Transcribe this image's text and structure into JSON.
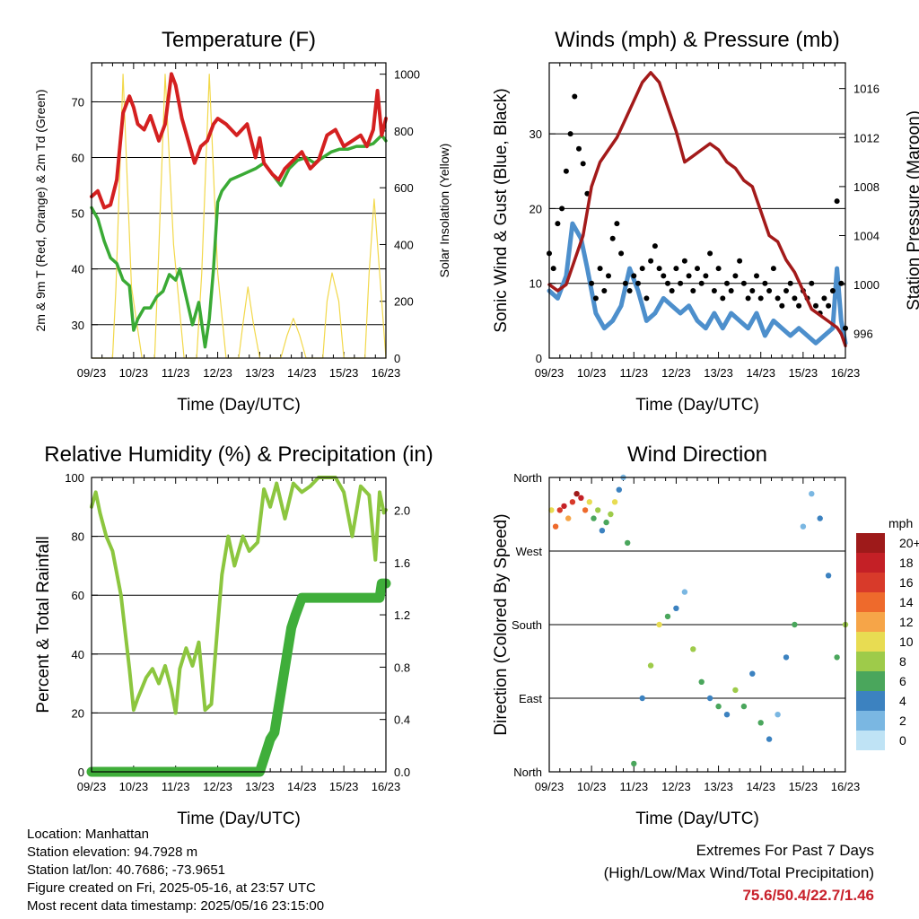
{
  "chart_data": [
    {
      "type": "line",
      "title": "Temperature (F)",
      "xlabel": "Time (Day/UTC)",
      "ylabel": "2m & 9m T (Red, Orange) & 2m Td (Green)",
      "ylabel_right": "Solar Insolation (Yellow)",
      "x_ticks": [
        "09/23",
        "10/23",
        "11/23",
        "12/23",
        "13/23",
        "14/23",
        "15/23",
        "16/23"
      ],
      "xlim": [
        0,
        7
      ],
      "ylim": [
        24,
        77
      ],
      "y_ticks": [
        30,
        40,
        50,
        60,
        70
      ],
      "ylim_right": [
        0,
        1040
      ],
      "y_ticks_right": [
        0,
        200,
        400,
        600,
        800,
        1000
      ],
      "grid": true,
      "series": [
        {
          "name": "2m & 9m T",
          "axis": "left",
          "color": "#d42020",
          "x": [
            0,
            0.15,
            0.3,
            0.45,
            0.6,
            0.75,
            0.9,
            1.0,
            1.1,
            1.25,
            1.4,
            1.6,
            1.75,
            1.9,
            2.0,
            2.15,
            2.3,
            2.45,
            2.6,
            2.75,
            2.9,
            3.0,
            3.2,
            3.45,
            3.7,
            3.9,
            4.0,
            4.1,
            4.3,
            4.45,
            4.6,
            4.8,
            5.0,
            5.2,
            5.4,
            5.6,
            5.8,
            6.0,
            6.2,
            6.4,
            6.55,
            6.7,
            6.8,
            6.9,
            7.0
          ],
          "y": [
            53,
            54,
            51,
            51.5,
            56,
            68,
            71,
            69,
            66,
            65,
            67.5,
            63,
            66,
            75,
            73,
            67,
            63,
            59,
            62,
            63,
            66,
            67,
            66,
            64,
            66,
            60,
            63.5,
            59,
            57,
            56,
            58,
            59.5,
            61,
            58,
            59.5,
            64,
            65,
            62,
            63,
            64,
            62,
            65,
            72,
            64,
            67
          ]
        },
        {
          "name": "2m Td",
          "axis": "left",
          "color": "#3aaa35",
          "x": [
            0,
            0.15,
            0.3,
            0.45,
            0.6,
            0.75,
            0.9,
            1.0,
            1.1,
            1.25,
            1.4,
            1.55,
            1.7,
            1.85,
            2.0,
            2.1,
            2.25,
            2.4,
            2.55,
            2.7,
            2.8,
            2.9,
            3.0,
            3.1,
            3.3,
            3.6,
            3.9,
            4.1,
            4.3,
            4.5,
            4.7,
            4.9,
            5.1,
            5.3,
            5.5,
            5.7,
            5.9,
            6.1,
            6.3,
            6.5,
            6.7,
            6.9,
            7.0
          ],
          "y": [
            51,
            49,
            45,
            42,
            41,
            38,
            37,
            29,
            31,
            33,
            33,
            35,
            36,
            39,
            38,
            40,
            35,
            30,
            34,
            26,
            31,
            40,
            52,
            54,
            56,
            57,
            58,
            59,
            57,
            55,
            58,
            59.5,
            60,
            59,
            60,
            61,
            61.5,
            61.5,
            62,
            62,
            62.5,
            64,
            63
          ]
        },
        {
          "name": "Solar Insolation",
          "axis": "right",
          "color": "#f2d84a",
          "x": [
            0,
            0.5,
            0.58,
            0.75,
            0.95,
            1.2,
            1.5,
            1.58,
            1.75,
            1.95,
            2.2,
            2.5,
            2.62,
            2.8,
            3.0,
            3.2,
            3.5,
            3.6,
            3.72,
            3.85,
            4.0,
            4.5,
            4.65,
            4.8,
            4.95,
            5.1,
            5.5,
            5.6,
            5.72,
            5.88,
            6.0,
            6.5,
            6.6,
            6.72,
            6.85,
            7.0
          ],
          "y": [
            0,
            0,
            250,
            1000,
            250,
            0,
            0,
            300,
            1000,
            400,
            0,
            0,
            300,
            1000,
            300,
            0,
            0,
            120,
            250,
            120,
            0,
            0,
            80,
            140,
            80,
            0,
            0,
            200,
            300,
            200,
            0,
            0,
            300,
            560,
            300,
            0
          ]
        }
      ]
    },
    {
      "type": "line",
      "title": "Winds (mph) & Pressure (mb)",
      "xlabel": "Time (Day/UTC)",
      "ylabel": "Sonic Wind & Gust (Blue, Black)",
      "ylabel_right": "Station Pressure (Maroon)",
      "x_ticks": [
        "09/23",
        "10/23",
        "11/23",
        "12/23",
        "13/23",
        "14/23",
        "15/23",
        "16/23"
      ],
      "xlim": [
        0,
        7
      ],
      "ylim": [
        0,
        39.5
      ],
      "y_ticks": [
        0,
        10,
        20,
        30
      ],
      "ylim_right": [
        994,
        1018.1
      ],
      "y_ticks_right": [
        996,
        1000,
        1004,
        1008,
        1012,
        1016
      ],
      "grid": true,
      "series": [
        {
          "name": "Sonic Wind",
          "axis": "left",
          "color": "#4d8fcc",
          "x": [
            0,
            0.2,
            0.4,
            0.55,
            0.75,
            0.9,
            1.1,
            1.3,
            1.5,
            1.7,
            1.9,
            2.1,
            2.3,
            2.5,
            2.7,
            2.9,
            3.1,
            3.3,
            3.5,
            3.7,
            3.9,
            4.1,
            4.3,
            4.5,
            4.7,
            4.9,
            5.1,
            5.3,
            5.5,
            5.7,
            5.9,
            6.1,
            6.3,
            6.5,
            6.7,
            6.8,
            6.9,
            7.0
          ],
          "y": [
            9,
            8,
            11,
            18,
            16,
            12,
            6,
            4,
            5,
            7,
            12,
            9,
            5,
            6,
            8,
            7,
            6,
            7,
            5,
            4,
            6,
            4,
            6,
            5,
            4,
            6,
            3,
            5,
            4,
            3,
            4,
            3,
            2,
            3,
            4,
            12,
            5,
            2
          ]
        },
        {
          "name": "Gust",
          "axis": "left",
          "color": "#000000",
          "kind": "scatter",
          "x": [
            0,
            0.1,
            0.2,
            0.3,
            0.4,
            0.5,
            0.6,
            0.7,
            0.8,
            0.9,
            1.0,
            1.1,
            1.2,
            1.3,
            1.4,
            1.5,
            1.6,
            1.7,
            1.8,
            1.9,
            2.0,
            2.1,
            2.2,
            2.3,
            2.4,
            2.5,
            2.6,
            2.7,
            2.8,
            2.9,
            3.0,
            3.1,
            3.2,
            3.3,
            3.4,
            3.5,
            3.6,
            3.7,
            3.8,
            3.9,
            4.0,
            4.1,
            4.2,
            4.3,
            4.4,
            4.5,
            4.6,
            4.7,
            4.8,
            4.9,
            5.0,
            5.1,
            5.2,
            5.3,
            5.4,
            5.5,
            5.6,
            5.7,
            5.8,
            5.9,
            6.0,
            6.1,
            6.2,
            6.3,
            6.4,
            6.5,
            6.6,
            6.7,
            6.8,
            6.9,
            7.0
          ],
          "y": [
            14,
            12,
            18,
            20,
            25,
            30,
            35,
            28,
            26,
            22,
            10,
            8,
            12,
            9,
            11,
            16,
            18,
            14,
            10,
            9,
            11,
            10,
            12,
            8,
            13,
            15,
            12,
            11,
            10,
            9,
            12,
            10,
            13,
            11,
            9,
            12,
            10,
            11,
            14,
            9,
            12,
            8,
            10,
            9,
            11,
            13,
            10,
            8,
            9,
            11,
            8,
            10,
            9,
            12,
            8,
            7,
            9,
            10,
            8,
            7,
            9,
            8,
            10,
            7,
            6,
            8,
            7,
            9,
            21,
            10,
            4
          ]
        },
        {
          "name": "Station Pressure",
          "axis": "right",
          "color": "#a31a1a",
          "x": [
            0,
            0.2,
            0.4,
            0.6,
            0.8,
            1.0,
            1.2,
            1.4,
            1.6,
            1.8,
            2.0,
            2.2,
            2.4,
            2.6,
            2.8,
            3.0,
            3.2,
            3.4,
            3.6,
            3.8,
            4.0,
            4.2,
            4.4,
            4.6,
            4.8,
            5.0,
            5.2,
            5.4,
            5.6,
            5.8,
            6.0,
            6.2,
            6.4,
            6.6,
            6.8,
            6.9,
            7.0
          ],
          "y": [
            1000,
            999.5,
            1000,
            1002,
            1004,
            1008,
            1010,
            1011,
            1012,
            1013.5,
            1015,
            1016.5,
            1017.3,
            1016.5,
            1014.5,
            1012.5,
            1010,
            1010.5,
            1011,
            1011.5,
            1011,
            1010,
            1009.5,
            1008.5,
            1008,
            1006,
            1004,
            1003.5,
            1002,
            1001,
            999.5,
            998,
            997.5,
            997,
            996.5,
            996,
            995
          ]
        }
      ]
    },
    {
      "type": "line",
      "title": "Relative Humidity (%) & Precipitation (in)",
      "xlabel": "Time (Day/UTC)",
      "ylabel": "Percent & Total Rainfall",
      "x_ticks": [
        "09/23",
        "10/23",
        "11/23",
        "12/23",
        "13/23",
        "14/23",
        "15/23",
        "16/23"
      ],
      "xlim": [
        0,
        7
      ],
      "ylim": [
        0,
        100
      ],
      "y_ticks": [
        0,
        20,
        40,
        60,
        80,
        100
      ],
      "ylim_right": [
        0,
        2.25
      ],
      "y_ticks_right": [
        "0.0",
        "0.4",
        "0.8",
        "1.2",
        "1.6",
        "2.0"
      ],
      "grid": true,
      "series": [
        {
          "name": "Relative Humidity",
          "axis": "left",
          "color": "#8cc63f",
          "x": [
            0,
            0.1,
            0.2,
            0.35,
            0.5,
            0.7,
            0.9,
            1.0,
            1.1,
            1.3,
            1.45,
            1.6,
            1.75,
            1.9,
            2.0,
            2.1,
            2.25,
            2.4,
            2.55,
            2.7,
            2.85,
            3.0,
            3.1,
            3.25,
            3.4,
            3.6,
            3.75,
            3.95,
            4.1,
            4.25,
            4.4,
            4.6,
            4.8,
            5.0,
            5.2,
            5.4,
            5.6,
            5.8,
            6.0,
            6.2,
            6.4,
            6.6,
            6.75,
            6.85,
            6.95,
            7.0
          ],
          "y": [
            90,
            95,
            88,
            80,
            75,
            60,
            35,
            21,
            25,
            32,
            35,
            30,
            36,
            28,
            20,
            35,
            42,
            36,
            44,
            21,
            23,
            50,
            67,
            80,
            70,
            80,
            75,
            78,
            96,
            90,
            98,
            86,
            98,
            95,
            97,
            100,
            100,
            100,
            95,
            80,
            97,
            94,
            72,
            95,
            88,
            89
          ]
        },
        {
          "name": "Total Rainfall",
          "axis": "right",
          "color": "#3fae3a",
          "x": [
            0,
            1,
            2,
            3,
            4,
            4.1,
            4.2,
            4.25,
            4.35,
            4.45,
            4.55,
            4.65,
            4.75,
            4.85,
            5,
            5.5,
            6,
            6.5,
            6.85,
            6.9,
            7.0
          ],
          "y": [
            0,
            0,
            0,
            0,
            0,
            0.1,
            0.2,
            0.25,
            0.3,
            0.5,
            0.7,
            0.9,
            1.1,
            1.2,
            1.33,
            1.33,
            1.33,
            1.33,
            1.33,
            1.44,
            1.44
          ]
        }
      ]
    },
    {
      "type": "scatter",
      "title": "Wind Direction",
      "xlabel": "Time (Day/UTC)",
      "ylabel": "Direction (Colored By Speed)",
      "x_ticks": [
        "09/23",
        "10/23",
        "11/23",
        "12/23",
        "13/23",
        "14/23",
        "15/23",
        "16/23"
      ],
      "xlim": [
        0,
        7
      ],
      "y_ticks": [
        "North",
        "East",
        "South",
        "West",
        "North"
      ],
      "y_tick_values": [
        0,
        90,
        180,
        270,
        360
      ],
      "ylim": [
        0,
        360
      ],
      "grid": true,
      "colorbar_title": "mph",
      "colorbar_labels": [
        "20+",
        "18",
        "16",
        "14",
        "12",
        "10",
        "8",
        "6",
        "4",
        "2",
        "0"
      ],
      "colorbar_colors": [
        "#9e1a1a",
        "#c42026",
        "#d83a2a",
        "#ee6a2c",
        "#f6a548",
        "#e8dc52",
        "#9ecb4a",
        "#4aa65c",
        "#3c82c0",
        "#7ab7e2",
        "#bfe3f5"
      ],
      "series": [
        {
          "name": "Direction",
          "x": [
            0.05,
            0.15,
            0.25,
            0.35,
            0.45,
            0.55,
            0.65,
            0.75,
            0.85,
            0.95,
            1.05,
            1.15,
            1.25,
            1.35,
            1.45,
            1.55,
            1.65,
            1.75,
            1.85,
            2.0,
            2.2,
            2.4,
            2.6,
            2.8,
            3.0,
            3.2,
            3.4,
            3.6,
            3.8,
            4.0,
            4.2,
            4.4,
            4.6,
            4.8,
            5.0,
            5.2,
            5.4,
            5.6,
            5.8,
            6.0,
            6.2,
            6.4,
            6.6,
            6.8,
            7.0
          ],
          "y": [
            320,
            300,
            320,
            325,
            310,
            330,
            340,
            335,
            320,
            330,
            310,
            320,
            295,
            305,
            315,
            330,
            345,
            360,
            280,
            10,
            90,
            130,
            180,
            190,
            200,
            220,
            150,
            110,
            90,
            80,
            70,
            100,
            80,
            120,
            60,
            40,
            70,
            140,
            180,
            300,
            340,
            310,
            240,
            140,
            180
          ],
          "speeds": [
            10,
            14,
            16,
            18,
            12,
            16,
            20,
            18,
            14,
            10,
            6,
            8,
            4,
            6,
            8,
            10,
            4,
            2,
            6,
            6,
            4,
            8,
            10,
            6,
            4,
            2,
            8,
            6,
            4,
            6,
            4,
            8,
            6,
            4,
            6,
            4,
            2,
            4,
            6,
            2,
            2,
            4,
            4,
            6,
            8
          ]
        }
      ]
    }
  ],
  "footer": {
    "location": "Location: Manhattan",
    "elevation": "Station elevation: 94.7928 m",
    "latlon": "Station lat/lon: 40.7686; -73.9651",
    "created": "Figure created on Fri, 2025-05-16, at 23:57 UTC",
    "recent": "Most recent data timestamp: 2025/05/16 23:15:00"
  },
  "extremes": {
    "title": "Extremes For Past 7 Days",
    "subtitle": "(High/Low/Max Wind/Total Precipitation)",
    "value": "75.6/50.4/22.7/1.46"
  }
}
